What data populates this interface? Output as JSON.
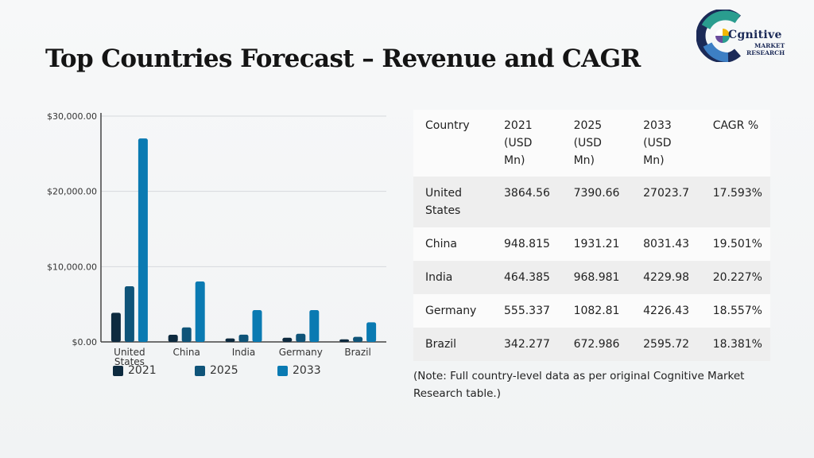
{
  "page": {
    "title": "Top Countries Forecast – Revenue and CAGR",
    "note": "(Note: Full country-level data as per original Cognitive Market Research table.)"
  },
  "logo": {
    "word": "Cgnitive",
    "sub_line1": "MARKET",
    "sub_line2": "RESEARCH",
    "colors": [
      "#2a9d8f",
      "#1b2a57",
      "#3d7fc4",
      "#6a4c9c"
    ]
  },
  "colors": {
    "series_2021": "#0d2a3f",
    "series_2025": "#0f5479",
    "series_2033": "#0a7ab2",
    "grid": "#d6d9dc",
    "axis": "#444444"
  },
  "chart_data": {
    "type": "bar",
    "categories": [
      "United States",
      "China",
      "India",
      "Germany",
      "Brazil"
    ],
    "series": [
      {
        "name": "2021",
        "values": [
          3864.56,
          948.815,
          464.385,
          555.337,
          342.277
        ]
      },
      {
        "name": "2025",
        "values": [
          7390.66,
          1931.21,
          968.981,
          1082.81,
          672.986
        ]
      },
      {
        "name": "2033",
        "values": [
          27023.7,
          8031.43,
          4229.98,
          4226.43,
          2595.72
        ]
      }
    ],
    "ylim": [
      0,
      30000
    ],
    "yticks": [
      "$0.00",
      "$10,000.00",
      "$20,000.00",
      "$30,000.00"
    ],
    "grid": true,
    "legend": "bottom"
  },
  "table": {
    "headers": [
      "Country",
      "2021 (USD Mn)",
      "2025 (USD Mn)",
      "2033 (USD Mn)",
      "CAGR %"
    ],
    "rows": [
      [
        "United States",
        "3864.56",
        "7390.66",
        "27023.7",
        "17.593%"
      ],
      [
        "China",
        "948.815",
        "1931.21",
        "8031.43",
        "19.501%"
      ],
      [
        "India",
        "464.385",
        "968.981",
        "4229.98",
        "20.227%"
      ],
      [
        "Germany",
        "555.337",
        "1082.81",
        "4226.43",
        "18.557%"
      ],
      [
        "Brazil",
        "342.277",
        "672.986",
        "2595.72",
        "18.381%"
      ]
    ]
  }
}
